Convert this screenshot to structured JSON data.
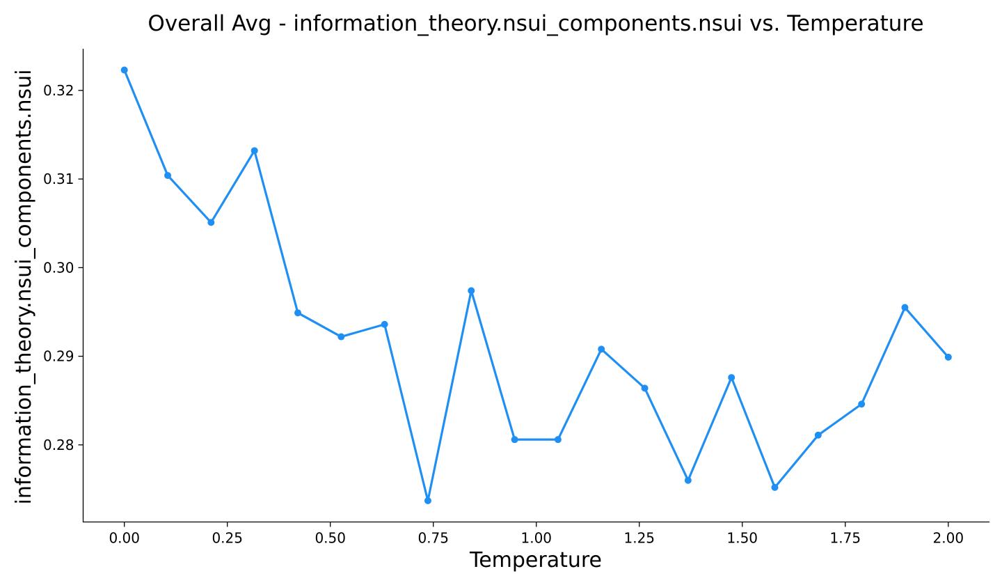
{
  "chart_data": {
    "type": "line",
    "title": "Overall Avg - information_theory.nsui_components.nsui vs. Temperature",
    "xlabel": "Temperature",
    "ylabel": "information_theory.nsui_components.nsui",
    "xlim": [
      -0.1,
      2.1
    ],
    "ylim": [
      0.2713,
      0.3247
    ],
    "xticks": [
      0.0,
      0.25,
      0.5,
      0.75,
      1.0,
      1.25,
      1.5,
      1.75,
      2.0
    ],
    "xtick_labels": [
      "0.00",
      "0.25",
      "0.50",
      "0.75",
      "1.00",
      "1.25",
      "1.50",
      "1.75",
      "2.00"
    ],
    "yticks": [
      0.28,
      0.29,
      0.3,
      0.31,
      0.32
    ],
    "ytick_labels": [
      "0.28",
      "0.29",
      "0.30",
      "0.31",
      "0.32"
    ],
    "grid": false,
    "series": [
      {
        "color": "#1f8ff3",
        "x": [
          0.0,
          0.1053,
          0.2105,
          0.3158,
          0.4211,
          0.5263,
          0.6316,
          0.7368,
          0.8421,
          0.9474,
          1.0526,
          1.1579,
          1.2632,
          1.3684,
          1.4737,
          1.5789,
          1.6842,
          1.7895,
          1.8947,
          2.0
        ],
        "y": [
          0.3223,
          0.3104,
          0.3051,
          0.3132,
          0.2949,
          0.2922,
          0.2936,
          0.2737,
          0.2974,
          0.2806,
          0.2806,
          0.2908,
          0.2864,
          0.276,
          0.2876,
          0.2752,
          0.2811,
          0.2846,
          0.2955,
          0.2899
        ]
      }
    ]
  }
}
